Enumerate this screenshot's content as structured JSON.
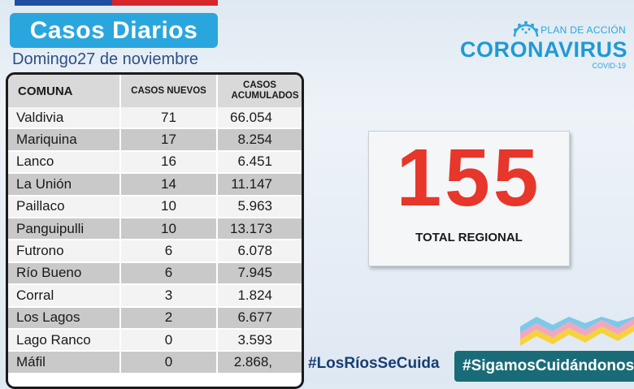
{
  "header": {
    "title": "Casos Diarios",
    "date": "Domingo27 de noviembre"
  },
  "logo": {
    "plan": "PLAN DE ACCIÓN",
    "brand": "CORONAVIRUS",
    "sub": "COVID-19"
  },
  "table": {
    "columns": [
      "COMUNA",
      "CASOS NUEVOS",
      "CASOS ACUMULADOS"
    ],
    "rows": [
      {
        "comuna": "Valdivia",
        "nuevos": "71",
        "acumulados": "66.054"
      },
      {
        "comuna": "Mariquina",
        "nuevos": "17",
        "acumulados": "8.254"
      },
      {
        "comuna": "Lanco",
        "nuevos": "16",
        "acumulados": "6.451"
      },
      {
        "comuna": "La Unión",
        "nuevos": "14",
        "acumulados": "11.147"
      },
      {
        "comuna": "Paillaco",
        "nuevos": "10",
        "acumulados": "5.963"
      },
      {
        "comuna": "Panguipulli",
        "nuevos": "10",
        "acumulados": "13.173"
      },
      {
        "comuna": "Futrono",
        "nuevos": "6",
        "acumulados": "6.078"
      },
      {
        "comuna": "Río Bueno",
        "nuevos": "6",
        "acumulados": "7.945"
      },
      {
        "comuna": "Corral",
        "nuevos": "3",
        "acumulados": "1.824"
      },
      {
        "comuna": "Los Lagos",
        "nuevos": "2",
        "acumulados": "6.677"
      },
      {
        "comuna": "Lago Ranco",
        "nuevos": "0",
        "acumulados": "3.593"
      },
      {
        "comuna": "Máfil",
        "nuevos": "0",
        "acumulados": "2.868,"
      }
    ]
  },
  "total": {
    "value": "155",
    "label": "TOTAL REGIONAL"
  },
  "hashtags": {
    "primary": "#LosRíosSeCuida",
    "secondary": "#SigamosCuidándonos"
  },
  "colors": {
    "title_bg": "#2aa6de",
    "total_number": "#e7362a",
    "hashtag_bg": "#1a6b78",
    "flag_blue": "#1f4fa3",
    "flag_red": "#d8242b"
  }
}
